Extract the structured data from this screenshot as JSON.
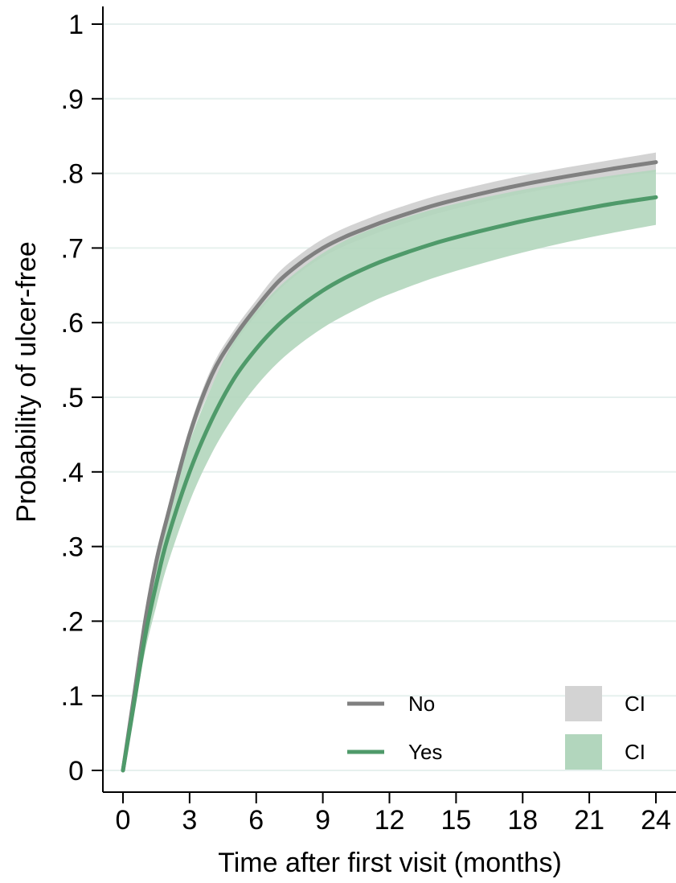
{
  "chart_data": {
    "type": "line",
    "title": "",
    "xlabel": "Time after first visit (months)",
    "ylabel": "Probability of ulcer-free",
    "xlim": [
      0,
      24
    ],
    "ylim": [
      0,
      1
    ],
    "xticks": [
      0,
      3,
      6,
      9,
      12,
      15,
      18,
      21,
      24
    ],
    "xtick_labels": [
      "0",
      "3",
      "6",
      "9",
      "12",
      "15",
      "18",
      "21",
      "24"
    ],
    "yticks": [
      0,
      0.1,
      0.2,
      0.3,
      0.4,
      0.5,
      0.6,
      0.7,
      0.8,
      0.9,
      1
    ],
    "ytick_labels": [
      "0",
      ".1",
      ".2",
      ".3",
      ".4",
      ".5",
      ".6",
      ".7",
      ".8",
      ".9",
      "1"
    ],
    "grid": "horizontal",
    "legend_position": "bottom-right",
    "series": [
      {
        "name": "No",
        "color": "#808080",
        "ci_label": "CI",
        "ci_color": "#d3d3d3",
        "x": [
          0,
          0.5,
          1,
          1.5,
          2,
          3,
          4,
          5,
          6,
          7,
          8,
          9,
          10,
          11,
          12,
          14,
          16,
          18,
          20,
          22,
          24
        ],
        "y": [
          0,
          0.1,
          0.2,
          0.28,
          0.34,
          0.45,
          0.53,
          0.58,
          0.62,
          0.655,
          0.68,
          0.7,
          0.715,
          0.727,
          0.738,
          0.757,
          0.772,
          0.785,
          0.796,
          0.806,
          0.815
        ],
        "lower": [
          0,
          0.095,
          0.19,
          0.27,
          0.33,
          0.44,
          0.515,
          0.57,
          0.61,
          0.643,
          0.668,
          0.688,
          0.703,
          0.715,
          0.726,
          0.745,
          0.76,
          0.773,
          0.784,
          0.794,
          0.802
        ],
        "upper": [
          0,
          0.105,
          0.21,
          0.29,
          0.35,
          0.46,
          0.54,
          0.59,
          0.63,
          0.667,
          0.692,
          0.712,
          0.727,
          0.739,
          0.75,
          0.769,
          0.784,
          0.797,
          0.808,
          0.818,
          0.828
        ]
      },
      {
        "name": "Yes",
        "color": "#4f9a6a",
        "ci_label": "CI",
        "ci_color": "#b2d6bd",
        "x": [
          0,
          0.5,
          1,
          1.5,
          2,
          3,
          4,
          5,
          6,
          7,
          8,
          9,
          10,
          11,
          12,
          14,
          16,
          18,
          20,
          22,
          24
        ],
        "y": [
          0,
          0.09,
          0.18,
          0.25,
          0.31,
          0.4,
          0.47,
          0.525,
          0.565,
          0.597,
          0.622,
          0.643,
          0.66,
          0.674,
          0.686,
          0.706,
          0.722,
          0.736,
          0.748,
          0.759,
          0.768
        ],
        "lower": [
          0,
          0.08,
          0.16,
          0.22,
          0.275,
          0.36,
          0.425,
          0.475,
          0.515,
          0.547,
          0.572,
          0.593,
          0.61,
          0.625,
          0.638,
          0.66,
          0.678,
          0.694,
          0.708,
          0.72,
          0.731
        ],
        "upper": [
          0,
          0.1,
          0.2,
          0.28,
          0.345,
          0.44,
          0.515,
          0.575,
          0.615,
          0.647,
          0.672,
          0.693,
          0.71,
          0.723,
          0.734,
          0.752,
          0.766,
          0.778,
          0.788,
          0.797,
          0.805
        ]
      }
    ]
  }
}
